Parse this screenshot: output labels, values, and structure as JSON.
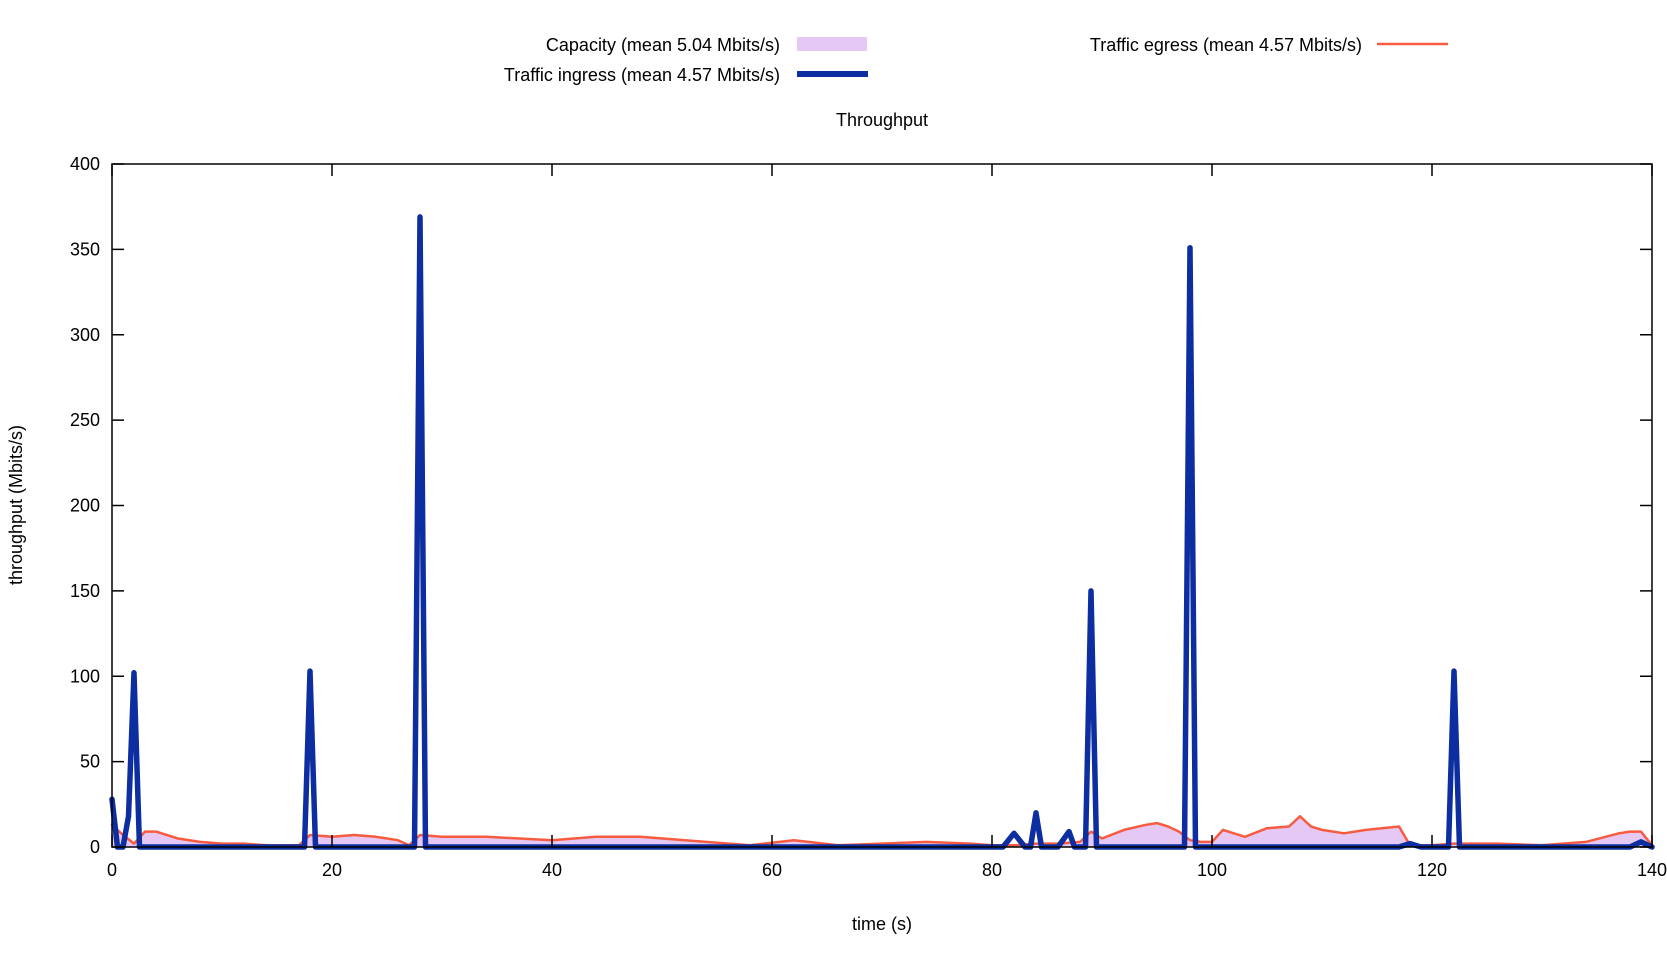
{
  "chart_data": {
    "type": "line",
    "title": "Throughput",
    "xlabel": "time (s)",
    "ylabel": "throughput (Mbits/s)",
    "xlim": [
      0,
      140
    ],
    "ylim": [
      0,
      400
    ],
    "xticks": [
      0,
      20,
      40,
      60,
      80,
      100,
      120,
      140
    ],
    "yticks": [
      0,
      50,
      100,
      150,
      200,
      250,
      300,
      350,
      400
    ],
    "grid": false,
    "legend_position": "top",
    "series": [
      {
        "name": "Capacity (mean 5.04 Mbits/s)",
        "style": "area",
        "color": "#e6c8f5",
        "x": [
          0,
          1,
          2,
          3,
          4,
          6,
          8,
          10,
          12,
          14,
          16,
          17,
          18,
          20,
          22,
          24,
          26,
          27,
          28,
          30,
          34,
          40,
          44,
          48,
          54,
          58,
          62,
          66,
          70,
          74,
          78,
          80,
          82,
          84,
          86,
          88,
          89,
          90,
          92,
          94,
          95,
          96,
          97,
          98,
          99,
          100,
          101,
          103,
          105,
          107,
          108,
          109,
          110,
          112,
          114,
          117,
          118,
          120,
          122,
          124,
          126,
          130,
          134,
          137,
          138,
          139,
          140
        ],
        "y": [
          13,
          7,
          2,
          9,
          9,
          5,
          3,
          2,
          2,
          1,
          1,
          1,
          7,
          6,
          7,
          6,
          4,
          1,
          7,
          6,
          6,
          4,
          6,
          6,
          3,
          1,
          4,
          1,
          2,
          3,
          2,
          1,
          1,
          2,
          2,
          3,
          9,
          5,
          10,
          13,
          14,
          12,
          9,
          4,
          3,
          3,
          10,
          6,
          11,
          12,
          18,
          12,
          10,
          8,
          10,
          12,
          1,
          1,
          2,
          2,
          2,
          1,
          3,
          8,
          9,
          9,
          1
        ]
      },
      {
        "name": "Traffic ingress (mean 4.57 Mbits/s)",
        "style": "line",
        "color": "#0c2ea0",
        "x": [
          0,
          0.5,
          1,
          1.5,
          2,
          2.5,
          3,
          17,
          17.5,
          18,
          18.5,
          19,
          27,
          27.5,
          28,
          28.5,
          29,
          81,
          82,
          83,
          83.5,
          84,
          84.5,
          86,
          87,
          87.5,
          88,
          88.5,
          89,
          89.5,
          90,
          97,
          97.5,
          98,
          98.5,
          99,
          117,
          118,
          119,
          121,
          121.5,
          122,
          122.5,
          123,
          138,
          139,
          140
        ],
        "y": [
          28,
          0,
          0,
          18,
          102,
          0,
          0,
          0,
          0,
          103,
          0,
          0,
          0,
          0,
          369,
          0,
          0,
          0,
          8,
          0,
          0,
          20,
          0,
          0,
          9,
          0,
          0,
          0,
          150,
          0,
          0,
          0,
          0,
          351,
          0,
          0,
          0,
          2,
          0,
          0,
          0,
          103,
          0,
          0,
          0,
          3,
          0
        ]
      },
      {
        "name": "Traffic egress (mean 4.57 Mbits/s)",
        "style": "line",
        "color": "#f75c40",
        "x": [
          0,
          1,
          2,
          3,
          4,
          6,
          8,
          10,
          12,
          14,
          16,
          17,
          18,
          20,
          22,
          24,
          26,
          27,
          28,
          30,
          34,
          40,
          44,
          48,
          54,
          58,
          62,
          66,
          70,
          74,
          78,
          80,
          82,
          84,
          86,
          88,
          89,
          90,
          92,
          94,
          95,
          96,
          97,
          98,
          99,
          100,
          101,
          103,
          105,
          107,
          108,
          109,
          110,
          112,
          114,
          117,
          118,
          120,
          122,
          124,
          126,
          130,
          134,
          137,
          138,
          139,
          140
        ],
        "y": [
          13,
          7,
          2,
          9,
          9,
          5,
          3,
          2,
          2,
          1,
          1,
          1,
          7,
          6,
          7,
          6,
          4,
          1,
          7,
          6,
          6,
          4,
          6,
          6,
          3,
          1,
          4,
          1,
          2,
          3,
          2,
          1,
          1,
          2,
          2,
          3,
          9,
          5,
          10,
          13,
          14,
          12,
          9,
          4,
          3,
          3,
          10,
          6,
          11,
          12,
          18,
          12,
          10,
          8,
          10,
          12,
          1,
          1,
          2,
          2,
          2,
          1,
          3,
          8,
          9,
          9,
          1
        ]
      }
    ]
  }
}
